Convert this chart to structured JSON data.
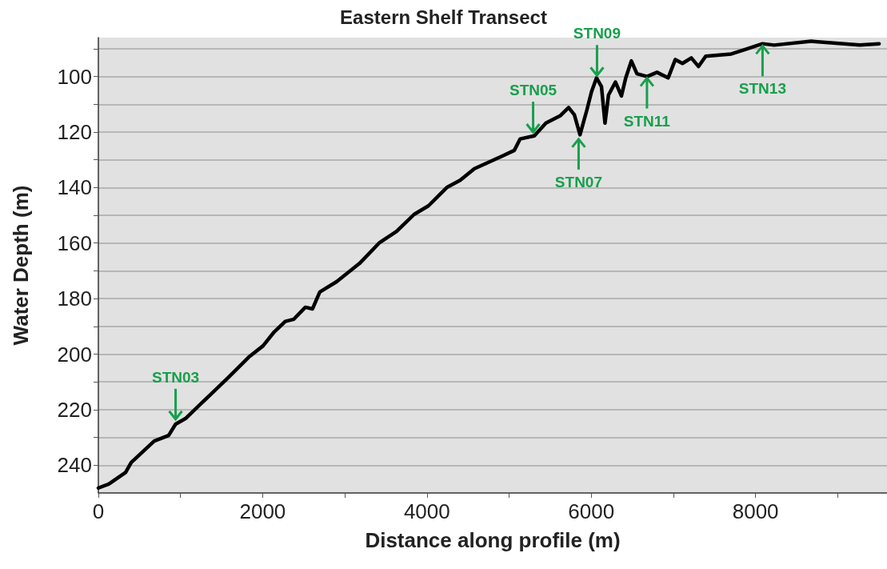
{
  "chart_data": {
    "type": "line",
    "title": "Eastern Shelf Transect",
    "xlabel": "Distance along profile (m)",
    "ylabel": "Water Depth (m)",
    "xlim": [
      0,
      9600
    ],
    "ylim": [
      250,
      86
    ],
    "xticks": [
      0,
      {
        "value": 1000,
        "label": null
      },
      2000,
      {
        "value": 3000,
        "label": null
      },
      4000,
      {
        "value": 5000,
        "label": null
      },
      6000,
      {
        "value": 7000,
        "label": null
      },
      8000,
      {
        "value": 9000,
        "label": null
      }
    ],
    "yticks": [
      {
        "value": 90,
        "label": null
      },
      100,
      {
        "value": 110,
        "label": null
      },
      120,
      {
        "value": 130,
        "label": null
      },
      140,
      {
        "value": 150,
        "label": null
      },
      160,
      {
        "value": 170,
        "label": null
      },
      180,
      {
        "value": 190,
        "label": null
      },
      200,
      {
        "value": 210,
        "label": null
      },
      220,
      {
        "value": 230,
        "label": null
      },
      240
    ],
    "grid": "y",
    "marker": "none",
    "line_style": "solid",
    "series": [
      {
        "color": "#000000",
        "x": [
          0,
          126,
          331,
          400,
          680,
          855,
          940,
          1060,
          1585,
          1830,
          2005,
          2140,
          2275,
          2380,
          2520,
          2607,
          2695,
          2900,
          2973,
          3180,
          3424,
          3630,
          3842,
          4017,
          4241,
          4404,
          4578,
          4922,
          5064,
          5133,
          5307,
          5448,
          5620,
          5724,
          5794,
          5863,
          5949,
          6002,
          6064,
          6124,
          6167,
          6210,
          6294,
          6367,
          6420,
          6488,
          6556,
          6680,
          6800,
          6936,
          7023,
          7110,
          7218,
          7306,
          7393,
          7704,
          7880,
          8085,
          8226,
          8677,
          9268,
          9504
        ],
        "values": [
          248.2,
          246.8,
          242.6,
          239,
          231.3,
          229.3,
          225.2,
          223.2,
          208.3,
          201.1,
          197,
          192,
          188.2,
          187.4,
          183.1,
          183.7,
          177.6,
          173.9,
          172.2,
          167.3,
          159.8,
          155.8,
          149.7,
          146.6,
          140,
          137.4,
          133.2,
          128.6,
          126.6,
          122.5,
          121.4,
          116.8,
          114.2,
          111.2,
          113.8,
          121,
          111.8,
          105.6,
          100.5,
          103.6,
          116.8,
          106.7,
          102,
          107,
          100.5,
          94.4,
          99,
          100,
          98.5,
          100.5,
          93.9,
          95.3,
          93.3,
          96.4,
          92.7,
          91.9,
          90.2,
          88.2,
          88.7,
          87.3,
          88.7,
          88.2
        ]
      }
    ],
    "annotations": [
      {
        "text": "STN03",
        "x": 940,
        "y": 224
      },
      {
        "text": "STN05",
        "x": 5292,
        "y": 120.6
      },
      {
        "text": "STN07",
        "x": 5846,
        "y": 122
      },
      {
        "text": "STN09",
        "x": 6070,
        "y": 100.2
      },
      {
        "text": "STN11",
        "x": 6678,
        "y": 100
      },
      {
        "text": "STN13",
        "x": 8085,
        "y": 88.4
      }
    ]
  }
}
